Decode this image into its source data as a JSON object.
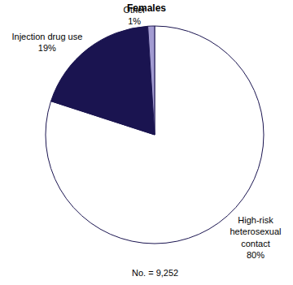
{
  "chart_data": {
    "type": "pie",
    "title": "Females",
    "categories": [
      "High-risk heterosexual contact",
      "Injection drug use",
      "Other"
    ],
    "values": [
      80,
      19,
      1
    ],
    "value_labels": [
      "80%",
      "19%",
      "1%"
    ],
    "colors": [
      "#ffffff",
      "#1a1450",
      "#a39cd2"
    ],
    "data_labels": true,
    "footnote": "No. = 9,252"
  }
}
